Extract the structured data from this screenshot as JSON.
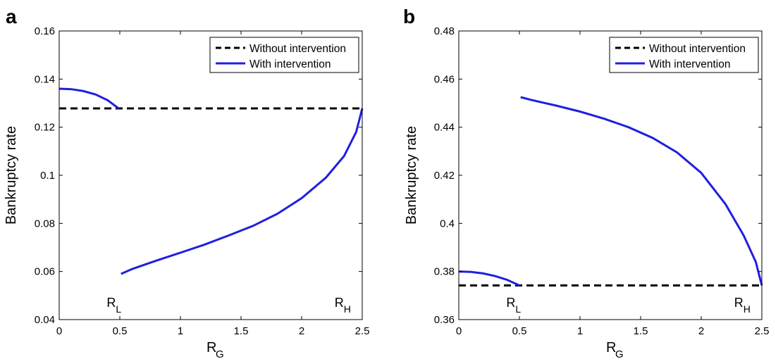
{
  "chart_data": [
    {
      "type": "line",
      "panel_label": "a",
      "xlabel": "R",
      "xlabel_sub": "G",
      "ylabel": "Bankruptcy rate",
      "xlim": [
        0,
        2.5
      ],
      "ylim": [
        0.04,
        0.16
      ],
      "xticks": [
        0,
        0.5,
        1,
        1.5,
        2,
        2.5
      ],
      "xtick_labels": [
        "0",
        "0.5",
        "1",
        "1.5",
        "2",
        "2.5"
      ],
      "yticks": [
        0.04,
        0.06,
        0.08,
        0.1,
        0.12,
        0.14,
        0.16
      ],
      "ytick_labels": [
        "0.04",
        "0.06",
        "0.08",
        "0.1",
        "0.12",
        "0.14",
        "0.16"
      ],
      "grid": false,
      "legend_position": "top-right",
      "series": [
        {
          "name": "Without intervention",
          "style": "dashed",
          "color": "#000000",
          "segments": [
            [
              [
                0,
                0.1278
              ],
              [
                2.5,
                0.1278
              ]
            ]
          ]
        },
        {
          "name": "With intervention",
          "style": "solid",
          "color": "#1f1fe0",
          "segments": [
            [
              [
                0,
                0.136
              ],
              [
                0.1,
                0.1358
              ],
              [
                0.2,
                0.135
              ],
              [
                0.3,
                0.1336
              ],
              [
                0.4,
                0.1312
              ],
              [
                0.49,
                0.1278
              ]
            ],
            [
              [
                0.51,
                0.059
              ],
              [
                0.6,
                0.061
              ],
              [
                0.8,
                0.0645
              ],
              [
                1.0,
                0.0678
              ],
              [
                1.2,
                0.0712
              ],
              [
                1.4,
                0.075
              ],
              [
                1.6,
                0.079
              ],
              [
                1.8,
                0.084
              ],
              [
                2.0,
                0.0905
              ],
              [
                2.2,
                0.099
              ],
              [
                2.35,
                0.108
              ],
              [
                2.45,
                0.118
              ],
              [
                2.5,
                0.1278
              ]
            ]
          ]
        }
      ],
      "annotations": [
        {
          "text": "R",
          "sub": "L",
          "x": 0.45,
          "y": 0.043
        },
        {
          "text": "R",
          "sub": "H",
          "x": 2.33,
          "y": 0.043
        }
      ]
    },
    {
      "type": "line",
      "panel_label": "b",
      "xlabel": "R",
      "xlabel_sub": "G",
      "ylabel": "Bankruptcy rate",
      "xlim": [
        0,
        2.5
      ],
      "ylim": [
        0.36,
        0.48
      ],
      "xticks": [
        0,
        0.5,
        1,
        1.5,
        2,
        2.5
      ],
      "xtick_labels": [
        "0",
        "0.5",
        "1",
        "1.5",
        "2",
        "2.5"
      ],
      "yticks": [
        0.36,
        0.38,
        0.4,
        0.42,
        0.44,
        0.46,
        0.48
      ],
      "ytick_labels": [
        "0.36",
        "0.38",
        "0.4",
        "0.42",
        "0.44",
        "0.46",
        "0.48"
      ],
      "grid": false,
      "legend_position": "top-right",
      "series": [
        {
          "name": "Without intervention",
          "style": "dashed",
          "color": "#000000",
          "segments": [
            [
              [
                0,
                0.3742
              ],
              [
                2.5,
                0.3742
              ]
            ]
          ]
        },
        {
          "name": "With intervention",
          "style": "solid",
          "color": "#1f1fe0",
          "segments": [
            [
              [
                0,
                0.38
              ],
              [
                0.1,
                0.3798
              ],
              [
                0.2,
                0.3792
              ],
              [
                0.3,
                0.3781
              ],
              [
                0.4,
                0.3765
              ],
              [
                0.5,
                0.3742
              ]
            ],
            [
              [
                0.51,
                0.4525
              ],
              [
                0.6,
                0.4513
              ],
              [
                0.8,
                0.449
              ],
              [
                1.0,
                0.4465
              ],
              [
                1.2,
                0.4435
              ],
              [
                1.4,
                0.44
              ],
              [
                1.6,
                0.4355
              ],
              [
                1.8,
                0.4295
              ],
              [
                2.0,
                0.421
              ],
              [
                2.2,
                0.408
              ],
              [
                2.35,
                0.395
              ],
              [
                2.45,
                0.384
              ],
              [
                2.5,
                0.3742
              ]
            ]
          ]
        }
      ],
      "annotations": [
        {
          "text": "R",
          "sub": "L",
          "x": 0.45,
          "y": 0.363
        },
        {
          "text": "R",
          "sub": "H",
          "x": 2.33,
          "y": 0.363
        }
      ]
    }
  ]
}
